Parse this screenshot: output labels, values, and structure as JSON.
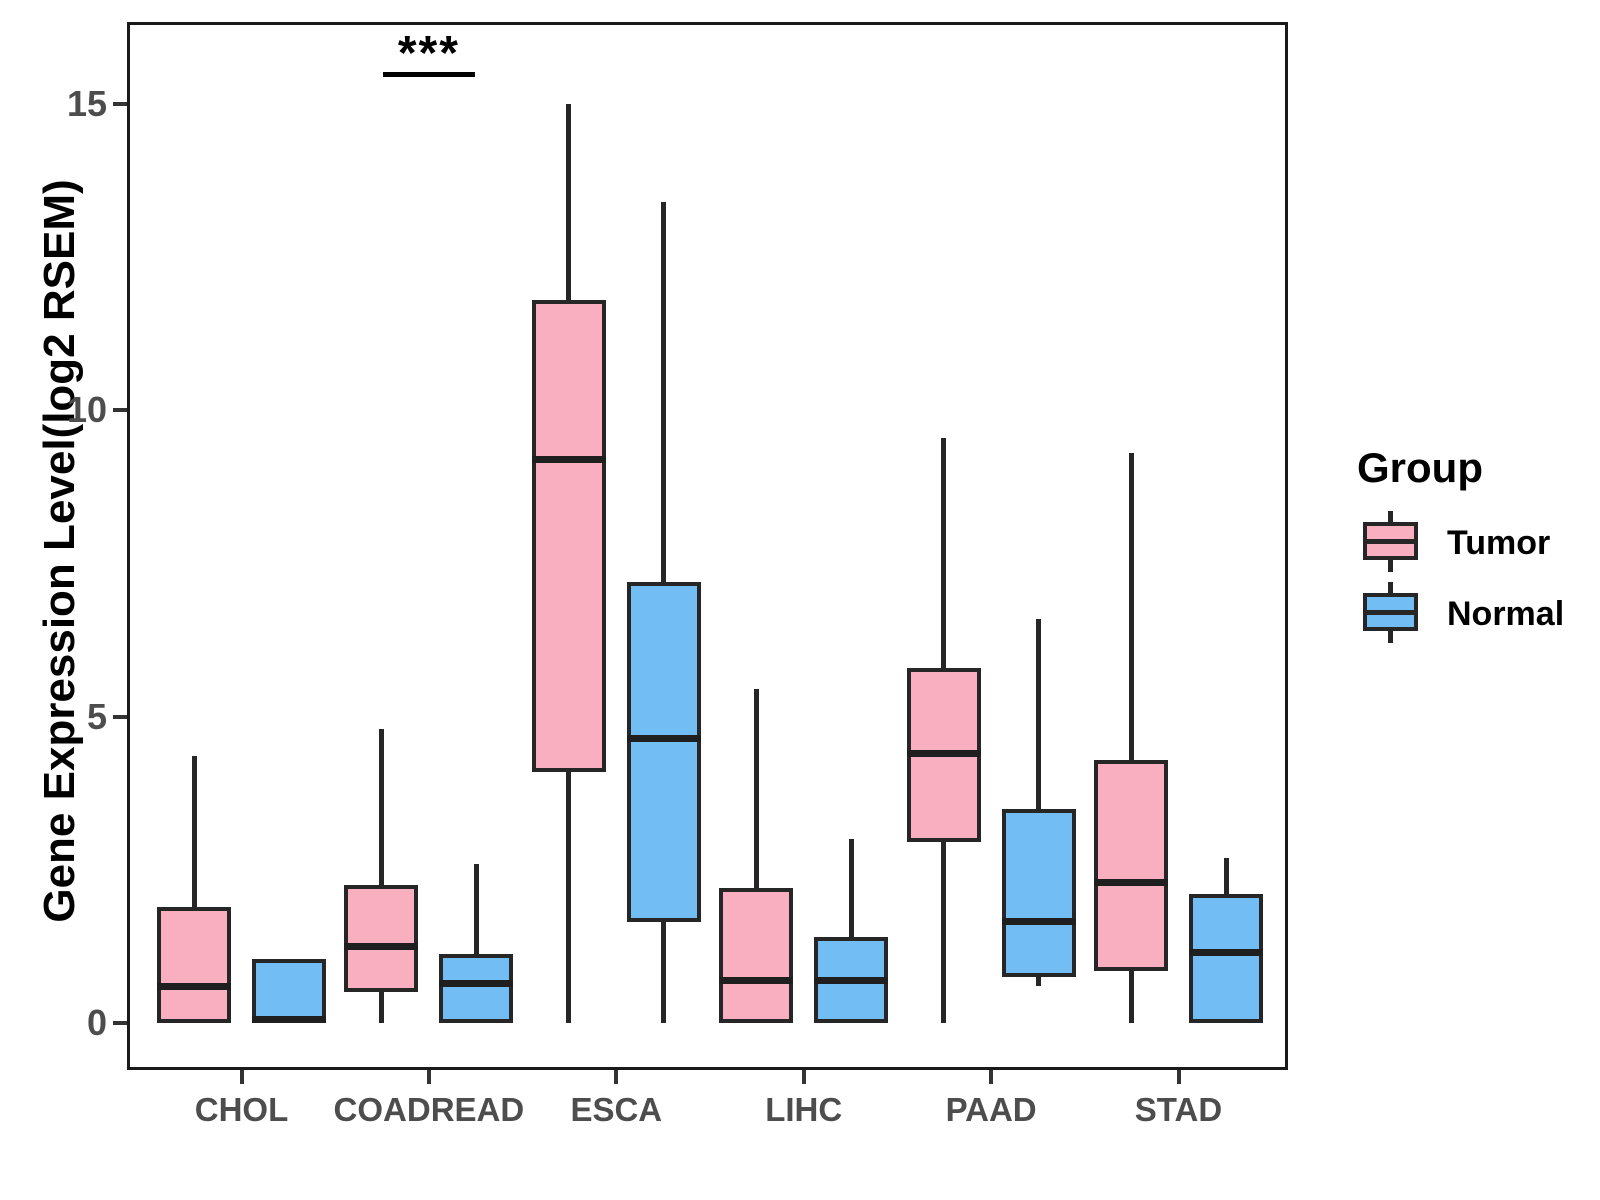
{
  "chart_data": {
    "type": "boxplot",
    "title": "",
    "xlabel": "",
    "ylabel": "Gene Expression Level(log2 RSEM)",
    "categories": [
      "CHOL",
      "COADREAD",
      "ESCA",
      "LIHC",
      "PAAD",
      "STAD"
    ],
    "yticks": [
      0,
      5,
      10,
      15
    ],
    "ylim": [
      -0.8,
      16.4
    ],
    "grid": "off",
    "legend": {
      "title": "Group",
      "position": "right",
      "entries": [
        "Tumor",
        "Normal"
      ]
    },
    "annotation": {
      "text": "***",
      "category": "COADREAD",
      "meaning": "significant difference marker above COADREAD group"
    },
    "groups": [
      {
        "name": "Tumor",
        "color": "#FAAFC1"
      },
      {
        "name": "Normal",
        "color": "#72BEF4"
      }
    ],
    "series": [
      {
        "name": "Tumor",
        "color": "#FAAFC1",
        "boxes": [
          {
            "category": "CHOL",
            "low": 0,
            "q1": 0,
            "median": 0.6,
            "q3": 1.9,
            "high": 4.35
          },
          {
            "category": "COADREAD",
            "low": 0,
            "q1": 0.5,
            "median": 1.25,
            "q3": 2.25,
            "high": 4.8
          },
          {
            "category": "ESCA",
            "low": 0,
            "q1": 4.1,
            "median": 9.2,
            "q3": 11.8,
            "high": 15.0
          },
          {
            "category": "LIHC",
            "low": 0,
            "q1": 0,
            "median": 0.7,
            "q3": 2.2,
            "high": 5.45
          },
          {
            "category": "PAAD",
            "low": 0,
            "q1": 2.95,
            "median": 4.4,
            "q3": 5.8,
            "high": 9.55
          },
          {
            "category": "STAD",
            "low": 0,
            "q1": 0.85,
            "median": 2.3,
            "q3": 4.3,
            "high": 9.3
          }
        ]
      },
      {
        "name": "Normal",
        "color": "#72BEF4",
        "boxes": [
          {
            "category": "CHOL",
            "low": 0,
            "q1": 0,
            "median": 0.05,
            "q3": 1.05,
            "high": 1.05
          },
          {
            "category": "COADREAD",
            "low": 0,
            "q1": 0,
            "median": 0.65,
            "q3": 1.13,
            "high": 2.6
          },
          {
            "category": "ESCA",
            "low": 0,
            "q1": 1.65,
            "median": 4.65,
            "q3": 7.2,
            "high": 13.4
          },
          {
            "category": "LIHC",
            "low": 0,
            "q1": 0,
            "median": 0.7,
            "q3": 1.4,
            "high": 3.0
          },
          {
            "category": "PAAD",
            "low": 0.6,
            "q1": 0.75,
            "median": 1.65,
            "q3": 3.5,
            "high": 6.6
          },
          {
            "category": "STAD",
            "low": 0,
            "q1": 0,
            "median": 1.15,
            "q3": 2.1,
            "high": 2.7
          }
        ]
      }
    ]
  }
}
